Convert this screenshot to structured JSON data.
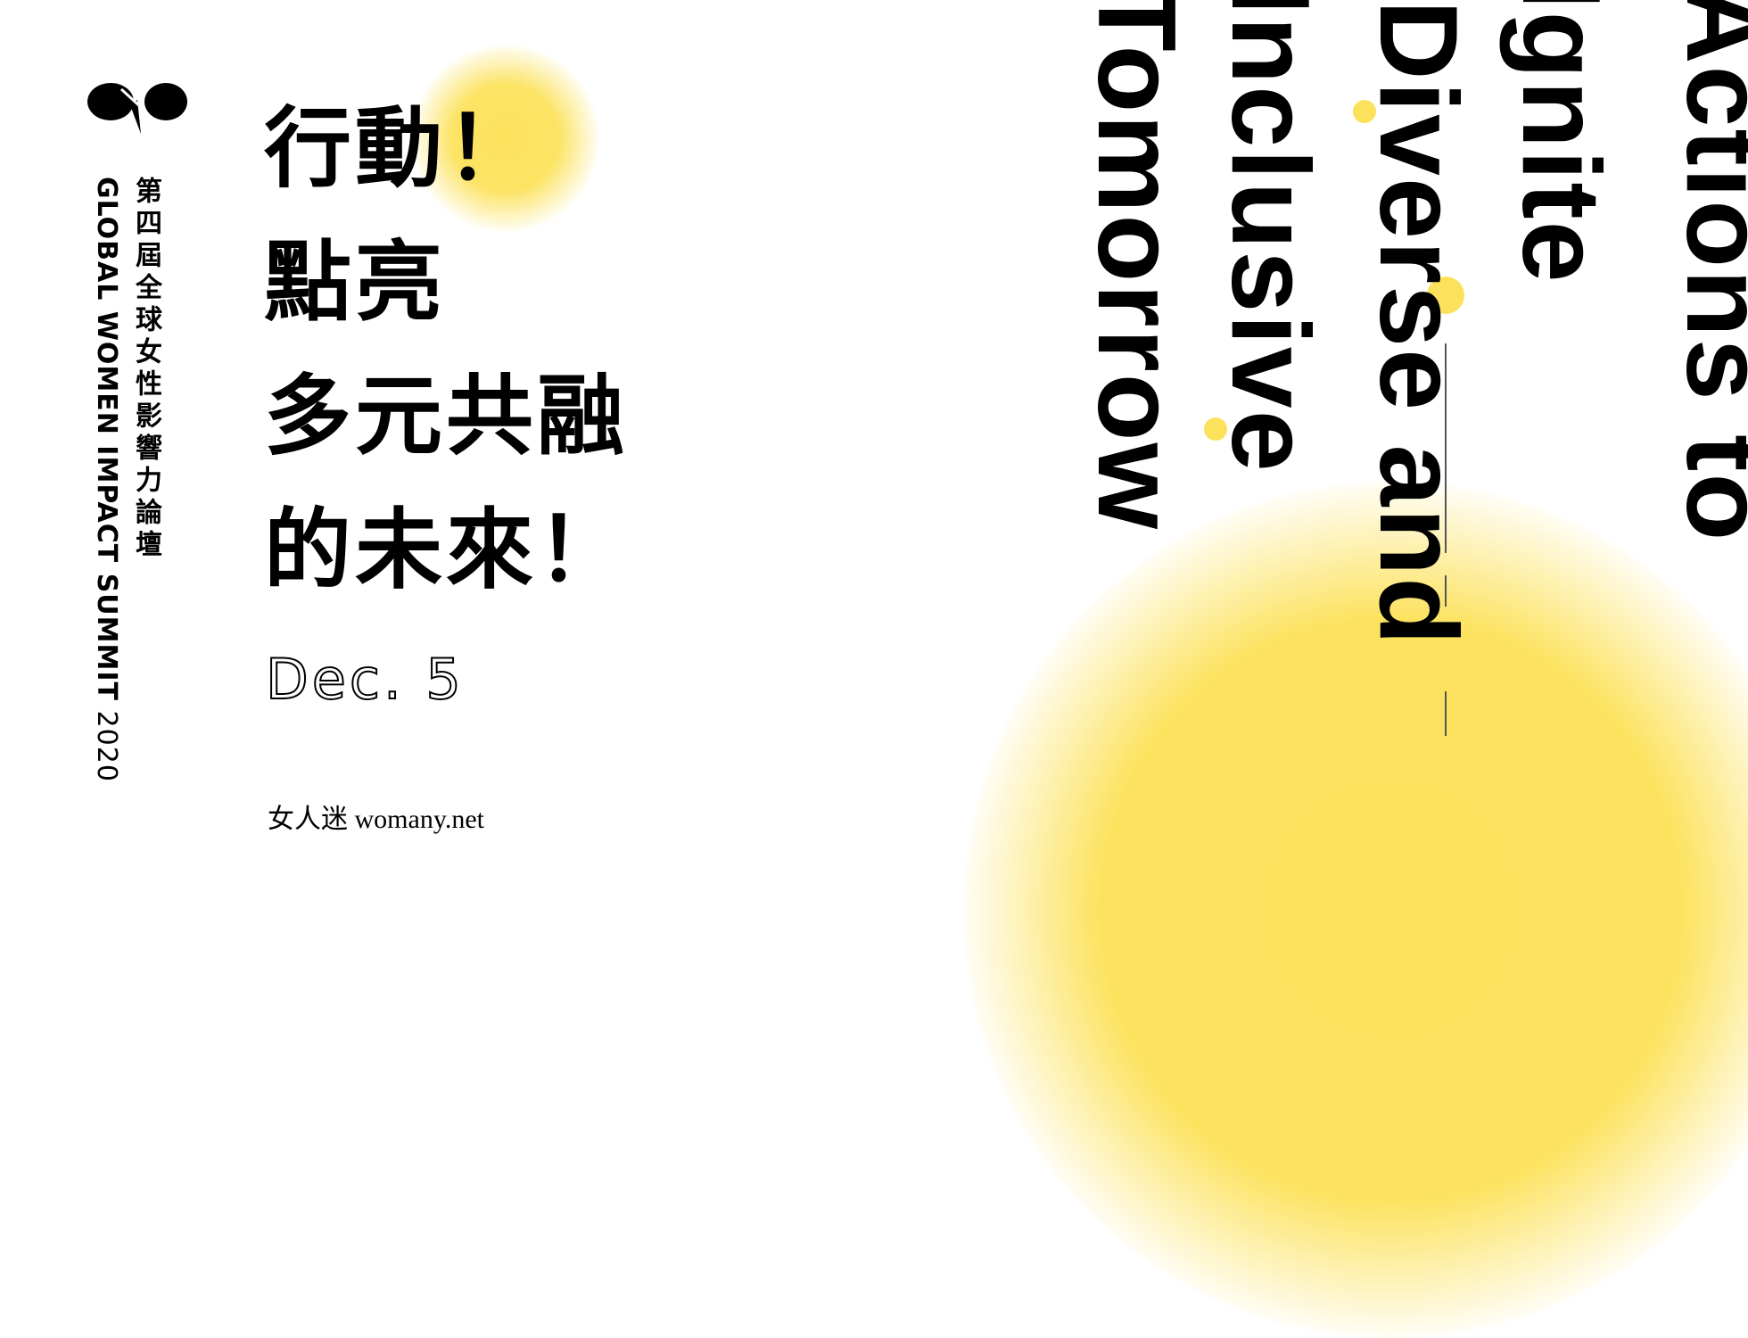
{
  "event": {
    "title_zh": "第四屆全球女性影響力論壇",
    "title_en_bold": "GLOBAL WOMEN IMPACT SUMMIT",
    "title_en_year": " 2020"
  },
  "headline": {
    "lines": [
      "行動！",
      "點亮",
      "多元共融",
      "的未來！"
    ]
  },
  "date": "Dec. 5",
  "brand": {
    "name": "女人迷 womany.net"
  },
  "slogan_en": {
    "lines": [
      "Actions to",
      "Ignite",
      "Diverse and",
      "Inclusive",
      "Tomorrow"
    ]
  },
  "colors": {
    "accent_yellow": "#fce25c",
    "text": "#000000",
    "background": "#ffffff"
  },
  "icons": {
    "logo": "infinity-leaf-logo-icon"
  }
}
